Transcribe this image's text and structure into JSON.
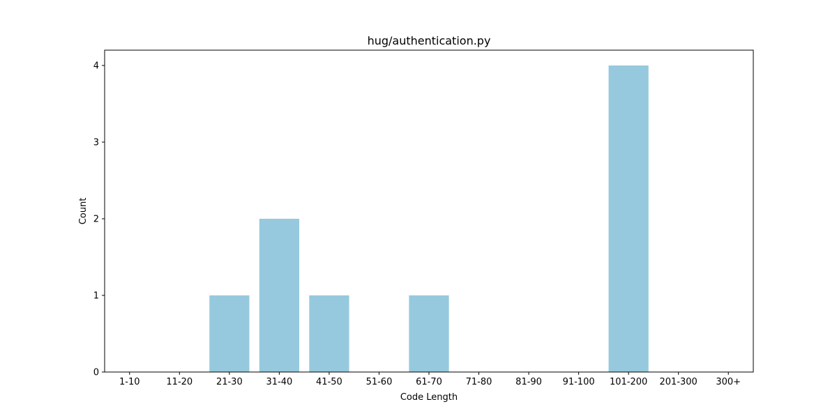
{
  "chart_data": {
    "type": "bar",
    "title": "hug/authentication.py",
    "xlabel": "Code Length",
    "ylabel": "Count",
    "categories": [
      "1-10",
      "11-20",
      "21-30",
      "31-40",
      "41-50",
      "51-60",
      "61-70",
      "71-80",
      "81-90",
      "91-100",
      "101-200",
      "201-300",
      "300+"
    ],
    "values": [
      0,
      0,
      1,
      2,
      1,
      0,
      1,
      0,
      0,
      0,
      4,
      0,
      0
    ],
    "yticks": [
      "0",
      "1",
      "2",
      "3",
      "4"
    ],
    "ylim": [
      0,
      4.2
    ],
    "bar_color": "#96c9dd",
    "grid": false,
    "legend": "none"
  }
}
